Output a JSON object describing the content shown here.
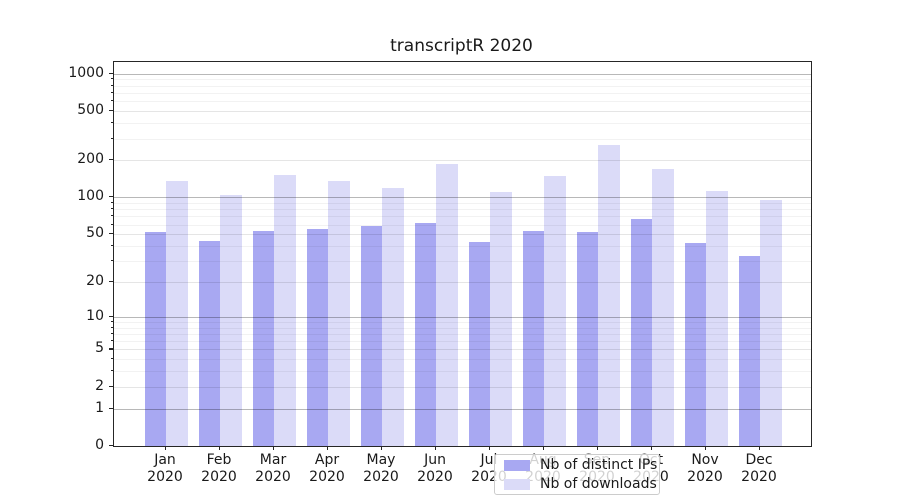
{
  "figure": {
    "title": "transcriptR 2020"
  },
  "chart_data": {
    "type": "bar",
    "title": "transcriptR 2020",
    "categories": [
      "Jan 2020",
      "Feb 2020",
      "Mar 2020",
      "Apr 2020",
      "May 2020",
      "Jun 2020",
      "Jul 2020",
      "Aug 2020",
      "Sep 2020",
      "Oct 2020",
      "Nov 2020",
      "Dec 2020"
    ],
    "months": [
      "Jan",
      "Feb",
      "Mar",
      "Apr",
      "May",
      "Jun",
      "Jul",
      "Aug",
      "Sep",
      "Oct",
      "Nov",
      "Dec"
    ],
    "year": "2020",
    "series": [
      {
        "name": "Nb of distinct IPs",
        "color": "#a8a8f2",
        "values": [
          52,
          44,
          53,
          55,
          58,
          62,
          43,
          53,
          52,
          66,
          42,
          33
        ]
      },
      {
        "name": "Nb of downloads",
        "color": "#dbdbf8",
        "values": [
          135,
          104,
          153,
          135,
          120,
          185,
          110,
          148,
          265,
          170,
          113,
          95
        ]
      }
    ],
    "xlabel": "",
    "ylabel": "",
    "yscale": "symlog-log1p",
    "ylim": [
      0,
      1250
    ],
    "yticks_labeled": [
      "0",
      "1",
      "2",
      "5",
      "10",
      "20",
      "50",
      "100",
      "200",
      "500",
      "1000"
    ],
    "ytick_values": [
      0,
      1,
      2,
      5,
      10,
      20,
      50,
      100,
      200,
      500,
      1000
    ],
    "ygrid_power10": [
      1,
      10,
      100,
      1000
    ],
    "ygrid_labeled": [
      2,
      5,
      20,
      50,
      200,
      500
    ],
    "ygrid_minor": [
      3,
      4,
      6,
      7,
      8,
      9,
      30,
      40,
      60,
      70,
      80,
      90,
      300,
      400,
      600,
      700,
      800,
      900
    ],
    "grid": true,
    "legend_position": "lower center"
  }
}
